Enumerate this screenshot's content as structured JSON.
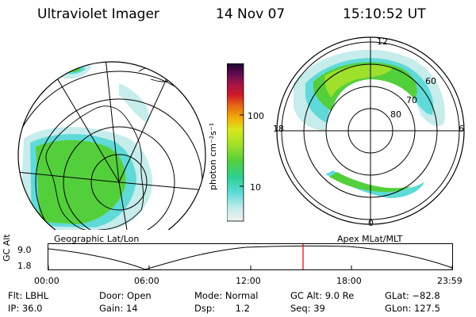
{
  "header": {
    "instrument": "Ultraviolet Imager",
    "date": "14 Nov 07",
    "time": "15:10:52 UT"
  },
  "left_panel": {
    "caption": "Geographic Lat/Lon"
  },
  "right_panel": {
    "caption": "Apex MLat/MLT",
    "lat_labels": [
      "80",
      "70",
      "60"
    ],
    "mlt_labels": {
      "top": "12",
      "bottom": "0",
      "left": "18",
      "right": "6"
    }
  },
  "colorbar": {
    "unit_label": "photon cm⁻²s⁻¹",
    "ticks": [
      "100",
      "10"
    ],
    "scale": "log",
    "colors": [
      "#f0f0f0",
      "#c6ecec",
      "#5fdad8",
      "#2ccf92",
      "#54cf3c",
      "#9ee02c",
      "#d8e81c",
      "#f3a60a",
      "#e45e18",
      "#d11a2a",
      "#a01448",
      "#5a0a50",
      "#1a0628"
    ]
  },
  "timeline": {
    "ylabel": "GC Alt",
    "y_ticks": [
      "9.0",
      "1.8"
    ],
    "x_ticks": [
      "00:00",
      "06:00",
      "12:00",
      "18:00",
      "23:59"
    ],
    "current_time_marker": "15:10:52",
    "marker_color": "#e00000"
  },
  "info": {
    "flt": "Flt: LBHL",
    "ip": "IP: 36.0",
    "door": "Door: Open",
    "gain": "Gain: 14",
    "mode": "Mode: Normal",
    "dsp": "Dsp:       1.2",
    "gcalt": "GC Alt: 9.0 Re",
    "seq": "Seq: 39",
    "glat": "GLat: −82.8",
    "glon": "GLon: 127.5"
  }
}
